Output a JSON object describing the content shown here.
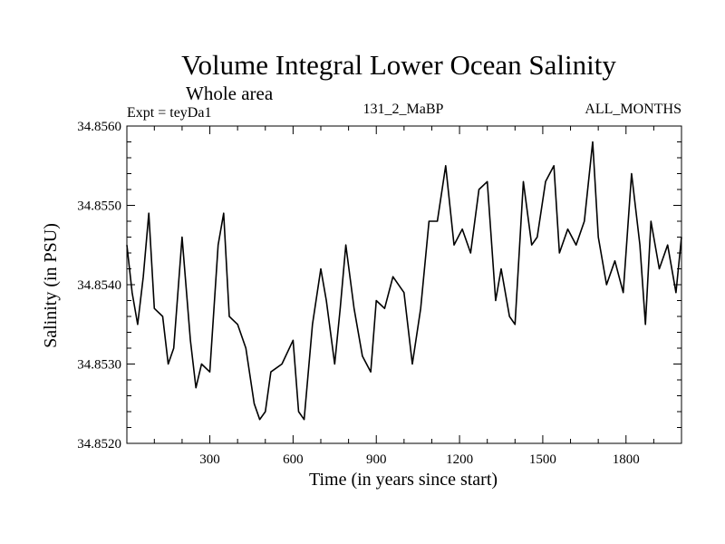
{
  "chart_data": {
    "type": "line",
    "title": "Volume Integral Lower Ocean Salinity",
    "subtitle": "Whole area",
    "experiment": "Expt = teyDa1",
    "run_label": "131_2_MaBP",
    "months_label": "ALL_MONTHS",
    "xlabel": "Time (in years since start)",
    "ylabel": "Salinity (in PSU)",
    "xlim": [
      1,
      2000
    ],
    "ylim": [
      34.852,
      34.856
    ],
    "xticks": [
      300,
      600,
      900,
      1200,
      1500,
      1800
    ],
    "yticks": [
      34.852,
      34.853,
      34.854,
      34.855,
      34.856
    ],
    "xtick_labels": [
      "300",
      "600",
      "900",
      "1200",
      "1500",
      "1800"
    ],
    "ytick_labels": [
      "34.8520",
      "34.8530",
      "34.8540",
      "34.8550",
      "34.8560"
    ],
    "grid": false,
    "series": [
      {
        "name": "salinity",
        "x": [
          1,
          20,
          40,
          60,
          80,
          100,
          130,
          150,
          170,
          200,
          230,
          250,
          270,
          300,
          330,
          350,
          370,
          400,
          430,
          460,
          480,
          500,
          520,
          560,
          600,
          620,
          640,
          670,
          700,
          720,
          750,
          770,
          790,
          820,
          850,
          880,
          900,
          930,
          960,
          1000,
          1030,
          1060,
          1090,
          1120,
          1150,
          1180,
          1210,
          1240,
          1270,
          1300,
          1330,
          1350,
          1380,
          1400,
          1430,
          1460,
          1480,
          1510,
          1540,
          1560,
          1590,
          1620,
          1650,
          1680,
          1700,
          1730,
          1760,
          1790,
          1820,
          1850,
          1870,
          1890,
          1920,
          1950,
          1980,
          2000
        ],
        "y": [
          34.8545,
          34.8539,
          34.8535,
          34.8541,
          34.8549,
          34.8537,
          34.8536,
          34.853,
          34.8532,
          34.8546,
          34.8533,
          34.8527,
          34.853,
          34.8529,
          34.8545,
          34.8549,
          34.8536,
          34.8535,
          34.8532,
          34.8525,
          34.8523,
          34.8524,
          34.8529,
          34.853,
          34.8533,
          34.8524,
          34.8523,
          34.8535,
          34.8542,
          34.8538,
          34.853,
          34.8537,
          34.8545,
          34.8537,
          34.8531,
          34.8529,
          34.8538,
          34.8537,
          34.8541,
          34.8539,
          34.853,
          34.8537,
          34.8548,
          34.8548,
          34.8555,
          34.8545,
          34.8547,
          34.8544,
          34.8552,
          34.8553,
          34.8538,
          34.8542,
          34.8536,
          34.8535,
          34.8553,
          34.8545,
          34.8546,
          34.8553,
          34.8555,
          34.8544,
          34.8547,
          34.8545,
          34.8548,
          34.8558,
          34.8546,
          34.854,
          34.8543,
          34.8539,
          34.8554,
          34.8545,
          34.8535,
          34.8548,
          34.8542,
          34.8545,
          34.8539,
          34.8546
        ]
      }
    ]
  }
}
